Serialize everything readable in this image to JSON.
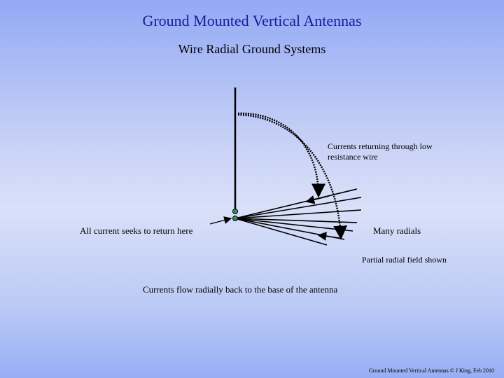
{
  "title": "Ground Mounted Vertical Antennas",
  "subtitle": "Wire Radial Ground Systems",
  "labels": {
    "currents_returning": "Currents returning through low resistance  wire",
    "currents_returning_l1": "Currents returning through low",
    "currents_returning_l2": "resistance  wire",
    "seeks": "All current seeks to return here",
    "many": "Many radials",
    "partial": "Partial radial field shown",
    "flow": "Currents flow radially back to the base of the antenna"
  },
  "footer": "Ground Mounted Vertical Antennas  © J King,  Feb 2010",
  "colors": {
    "title": "#1a1a9a",
    "node": "#3a8a6a"
  }
}
